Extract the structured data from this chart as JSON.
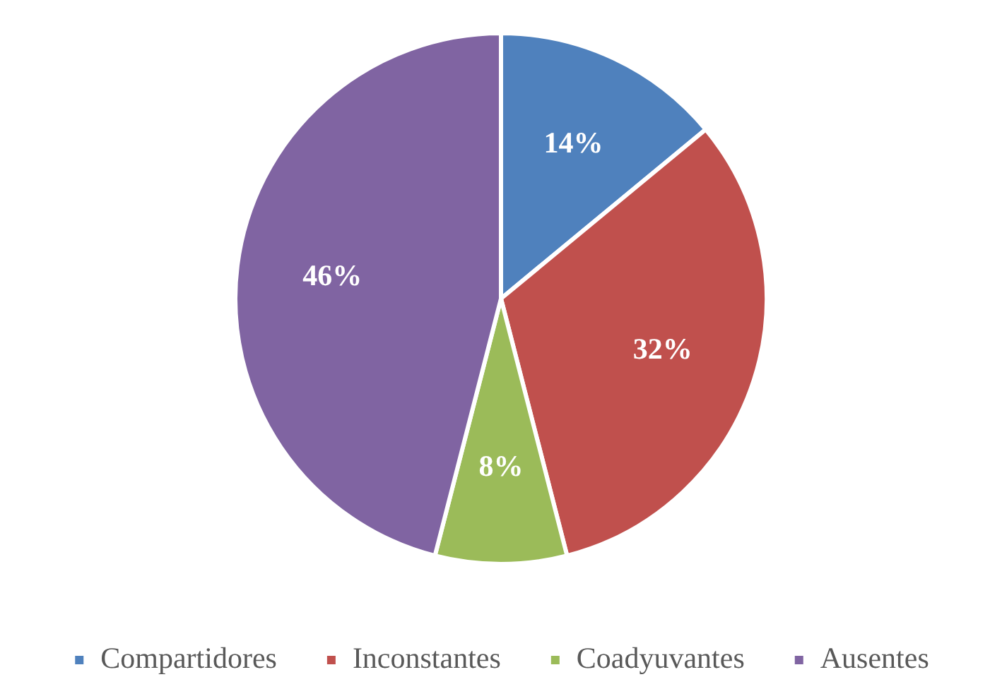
{
  "chart_data": {
    "type": "pie",
    "categories": [
      "Compartidores",
      "Inconstantes",
      "Coadyuvantes",
      "Ausentes"
    ],
    "values": [
      14,
      32,
      8,
      46
    ],
    "colors": [
      "#4f81bd",
      "#c0504d",
      "#9bbb59",
      "#8064a2"
    ],
    "value_labels": [
      "14%",
      "32%",
      "8%",
      "46%"
    ],
    "legend": "bottom"
  }
}
